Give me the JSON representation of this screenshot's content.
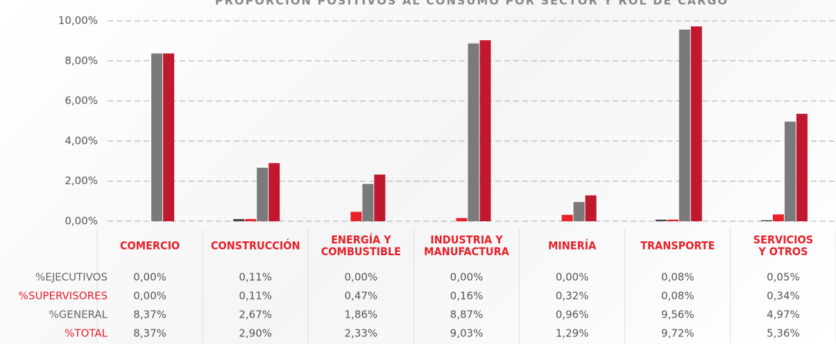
{
  "chart_data": {
    "type": "bar",
    "title": "PROPORCIÓN POSITIVOS AL CONSUMO POR SECTOR Y ROL DE CARGO",
    "categories": [
      "COMERCIO",
      "CONSTRUCCIÓN",
      "ENERGÍA Y\nCOMBUSTIBLE",
      "INDUSTRIA Y\nMANUFACTURA",
      "MINERÍA",
      "TRANSPORTE",
      "SERVICIOS\nY OTROS"
    ],
    "series": [
      {
        "name": "%EJECUTIVOS",
        "color": "#444446",
        "label_color": "#666666",
        "values": [
          0,
          0.11,
          0,
          0,
          0,
          0.08,
          0.05
        ],
        "value_labels": [
          "0,00%",
          "0,11%",
          "0,00%",
          "0,00%",
          "0,00%",
          "0,08%",
          "0,05%"
        ]
      },
      {
        "name": "%SUPERVISORES",
        "color": "#e8202a",
        "label_color": "#e8202a",
        "values": [
          0,
          0.11,
          0.47,
          0.16,
          0.32,
          0.08,
          0.34
        ],
        "value_labels": [
          "0,00%",
          "0,11%",
          "0,47%",
          "0,16%",
          "0,32%",
          "0,08%",
          "0,34%"
        ]
      },
      {
        "name": "%GENERAL",
        "color": "#7a7a7d",
        "label_color": "#666666",
        "values": [
          8.37,
          2.67,
          1.86,
          8.87,
          0.96,
          9.56,
          4.97
        ],
        "value_labels": [
          "8,37%",
          "2,67%",
          "1,86%",
          "8,87%",
          "0,96%",
          "9,56%",
          "4,97%"
        ]
      },
      {
        "name": "%TOTAL",
        "color": "#c0182f",
        "label_color": "#e8202a",
        "values": [
          8.37,
          2.9,
          2.33,
          9.03,
          1.29,
          9.72,
          5.36
        ],
        "value_labels": [
          "8,37%",
          "2,90%",
          "2,33%",
          "9,03%",
          "1,29%",
          "9,72%",
          "5,36%"
        ]
      }
    ],
    "ylim": [
      0,
      10
    ],
    "yticks": [
      {
        "value": 0,
        "label": "0,00%"
      },
      {
        "value": 2,
        "label": "2,00%"
      },
      {
        "value": 4,
        "label": "4,00%"
      },
      {
        "value": 6,
        "label": "6,00%"
      },
      {
        "value": 8,
        "label": "8,00%"
      },
      {
        "value": 10,
        "label": "10,00%"
      }
    ],
    "grid": true
  }
}
